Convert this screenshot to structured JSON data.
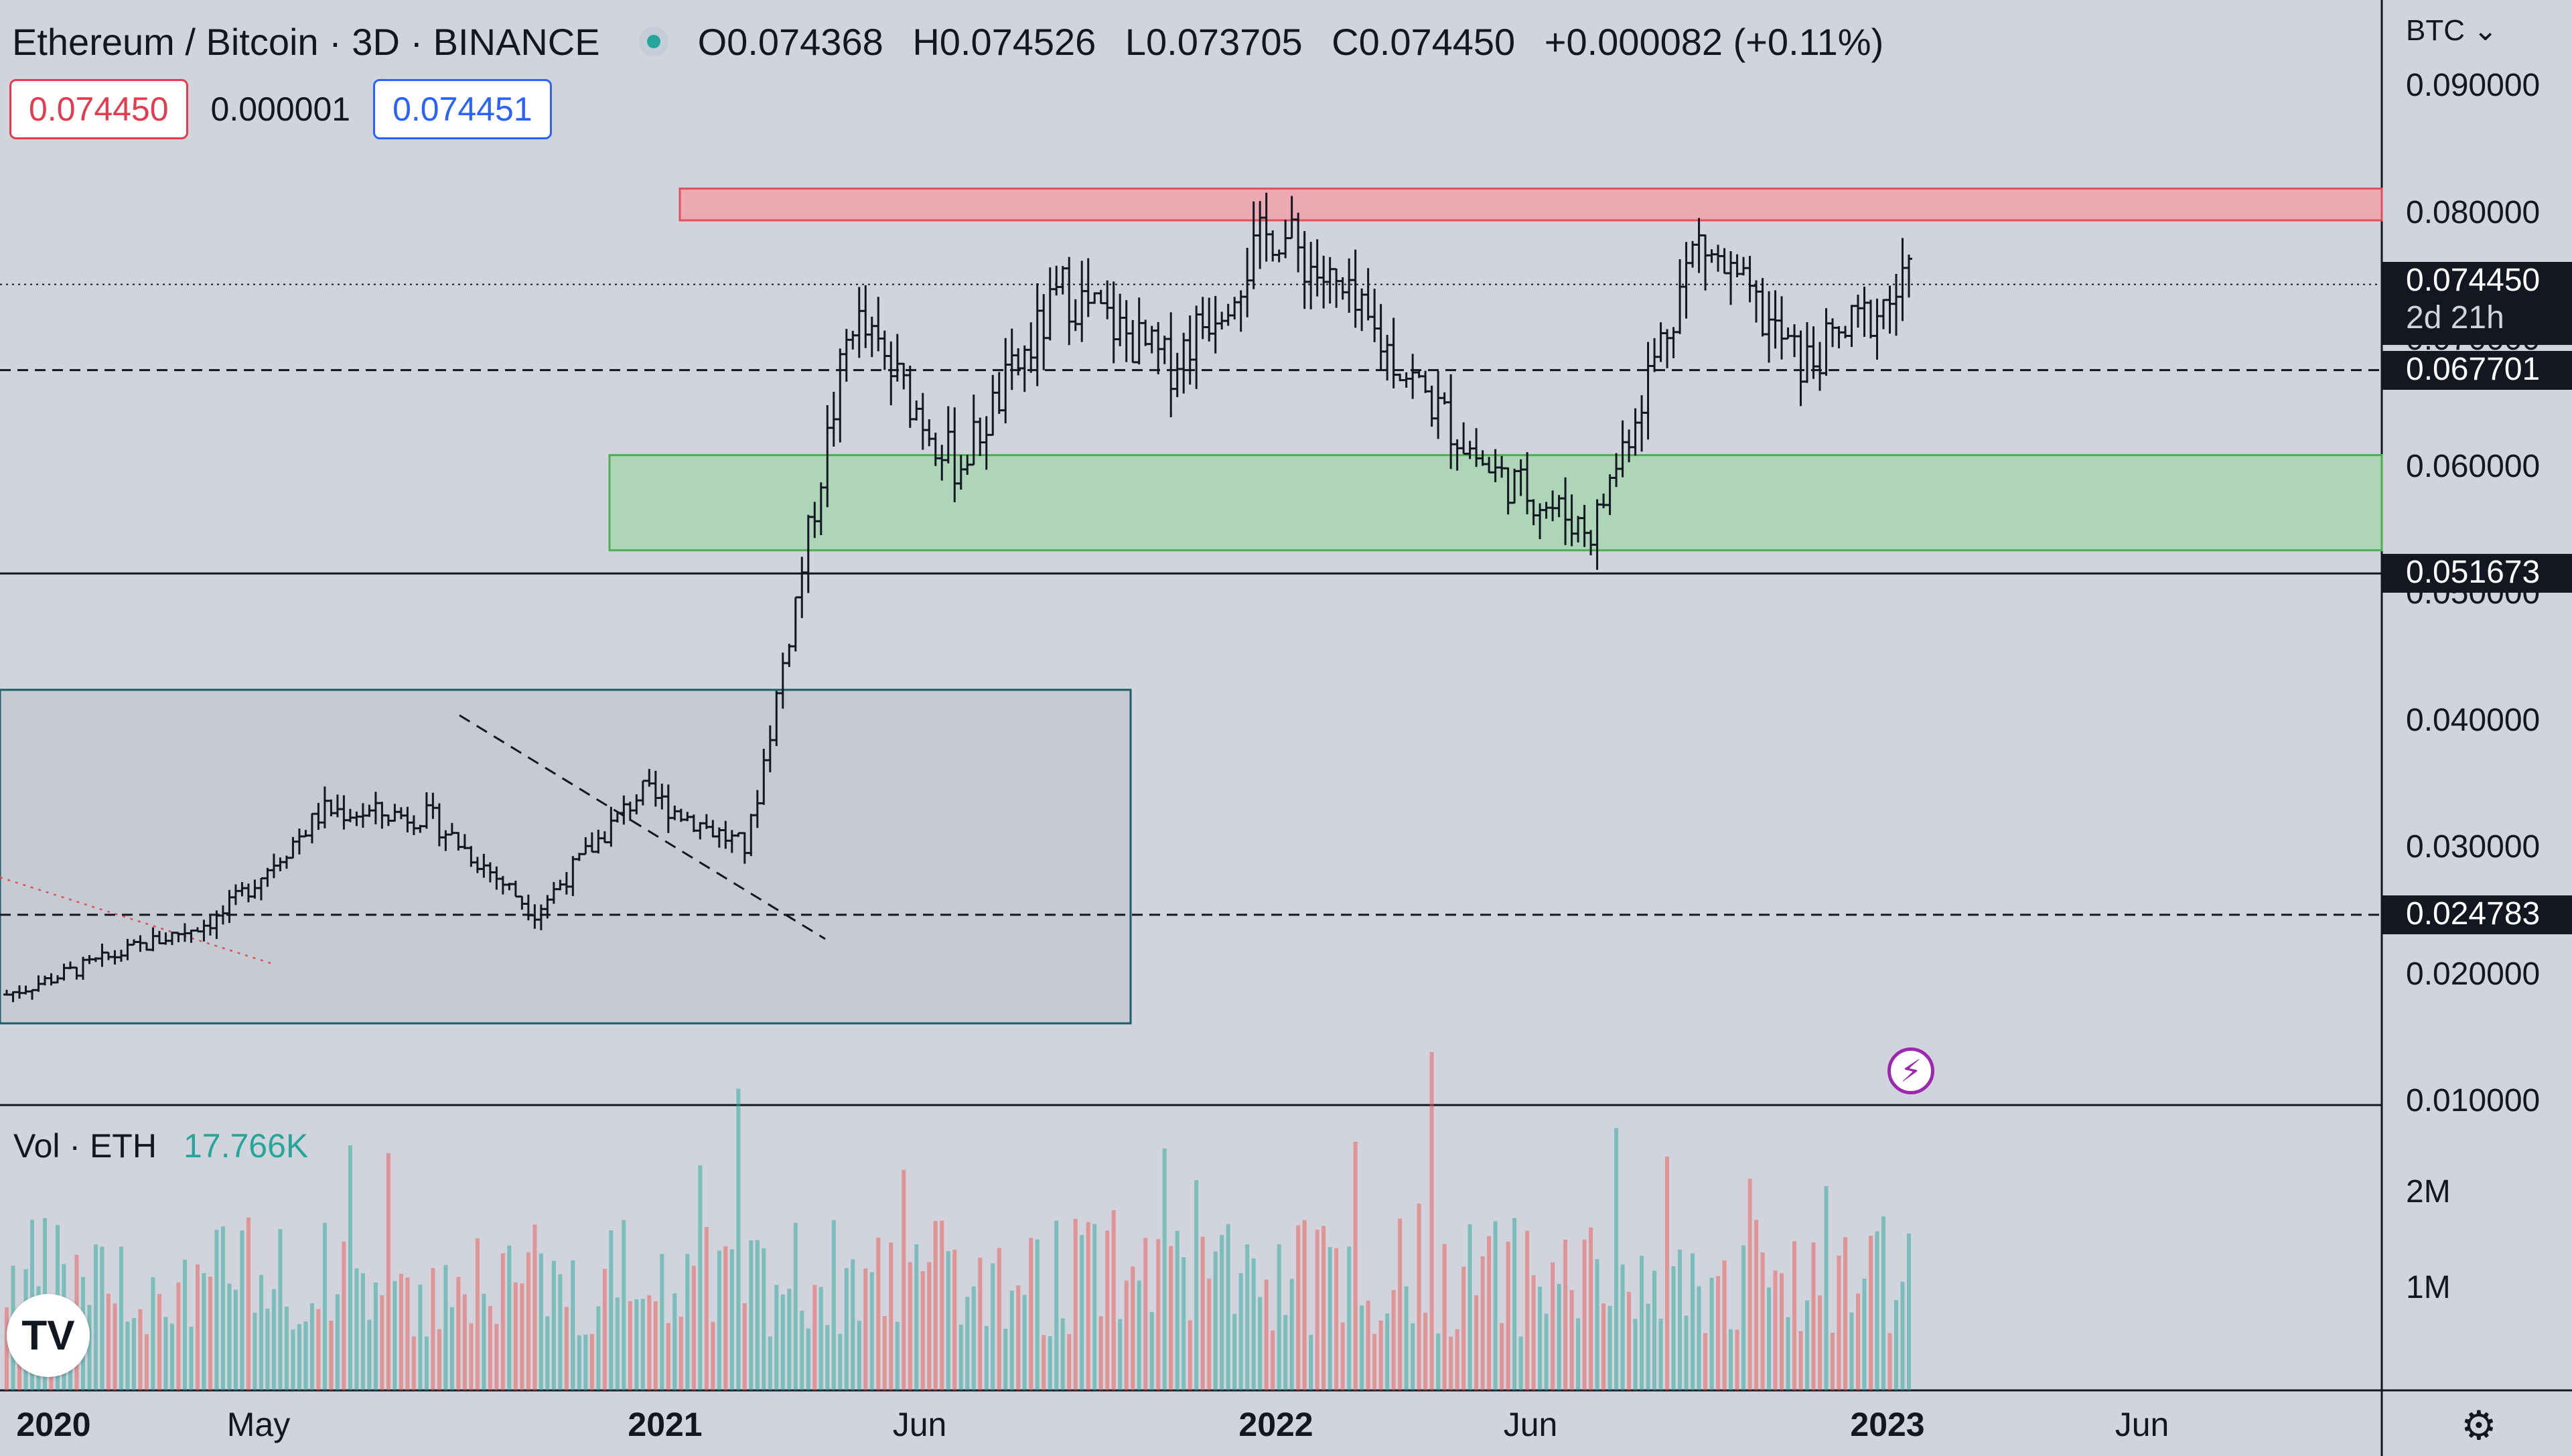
{
  "header": {
    "symbol": "Ethereum / Bitcoin · 3D · BINANCE",
    "ohlc": {
      "open": "O0.074368",
      "high": "H0.074526",
      "low": "L0.073705",
      "close": "C0.074450",
      "change": "+0.000082 (+0.11%)"
    },
    "sell_price": "0.074450",
    "spread": "0.000001",
    "buy_price": "0.074451"
  },
  "price_axis": {
    "currency": "BTC",
    "ticks": [
      "0.090000",
      "0.080000",
      "0.070000",
      "0.060000",
      "0.050000",
      "0.040000",
      "0.030000",
      "0.020000",
      "0.010000"
    ],
    "current_price": "0.074450",
    "countdown": "2d 21h",
    "levels": [
      "0.067701",
      "0.051673",
      "0.024783"
    ]
  },
  "volume": {
    "label": "Vol · ETH",
    "value": "17.766K",
    "ticks": [
      "2M",
      "1M"
    ]
  },
  "time_axis": [
    "2020",
    "May",
    "2021",
    "Jun",
    "2022",
    "Jun",
    "2023",
    "Jun"
  ],
  "time_axis_bold": [
    "2020",
    "2021",
    "2022",
    "2023"
  ],
  "colors": {
    "background": "#d1d4dc",
    "resistance_zone": "#f0a2aa",
    "support_zone": "#a8d5b1",
    "up_volume": "#26a69a",
    "down_volume": "#ef5350",
    "sell": "#e53b4f",
    "buy": "#2962ff"
  },
  "icons": {
    "live_indicator": "green-dot-icon",
    "currency_dropdown": "chevron-down-icon",
    "logo": "tradingview-logo",
    "alert": "lightning-bolt-icon",
    "settings": "gear-icon"
  },
  "chart_data": {
    "type": "ohlc",
    "title": "Ethereum / Bitcoin · 3D · BINANCE",
    "ylim": [
      0.01,
      0.09
    ],
    "x": [
      "2020-01",
      "2020-03",
      "2020-05",
      "2020-07",
      "2020-09",
      "2020-11",
      "2021-01",
      "2021-03",
      "2021-05",
      "2021-07",
      "2021-09",
      "2021-11",
      "2022-01",
      "2022-03",
      "2022-05",
      "2022-07",
      "2022-09",
      "2022-11",
      "2023-01"
    ],
    "close": [
      0.0185,
      0.0215,
      0.0245,
      0.033,
      0.0325,
      0.025,
      0.0345,
      0.03,
      0.072,
      0.06,
      0.074,
      0.068,
      0.079,
      0.07,
      0.06,
      0.055,
      0.078,
      0.068,
      0.0745
    ],
    "zones": [
      {
        "label": "resistance",
        "from": 0.0795,
        "to": 0.082
      },
      {
        "label": "support",
        "from": 0.0535,
        "to": 0.061
      }
    ],
    "levels": [
      0.067701,
      0.051673,
      0.024783
    ],
    "current": 0.07445,
    "volume_last": "17.766K"
  }
}
